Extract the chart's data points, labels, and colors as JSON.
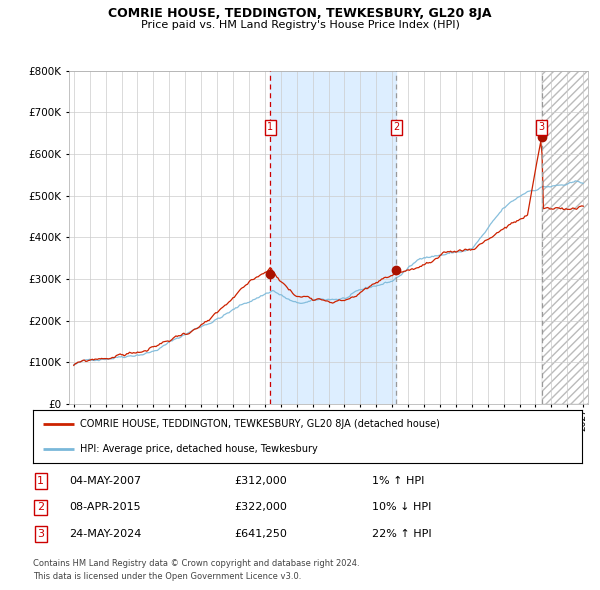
{
  "title": "COMRIE HOUSE, TEDDINGTON, TEWKESBURY, GL20 8JA",
  "subtitle": "Price paid vs. HM Land Registry's House Price Index (HPI)",
  "hpi_label": "HPI: Average price, detached house, Tewkesbury",
  "house_label": "COMRIE HOUSE, TEDDINGTON, TEWKESBURY, GL20 8JA (detached house)",
  "x_start_year": 1995,
  "x_end_year": 2027,
  "ylim": [
    0,
    800000
  ],
  "yticks": [
    0,
    100000,
    200000,
    300000,
    400000,
    500000,
    600000,
    700000,
    800000
  ],
  "sale_dates": [
    "04-MAY-2007",
    "08-APR-2015",
    "24-MAY-2024"
  ],
  "sale_prices": [
    312000,
    322000,
    641250
  ],
  "sale_prices_str": [
    "£312,000",
    "£322,000",
    "£641,250"
  ],
  "sale_hpi_pct": [
    "1% ↑ HPI",
    "10% ↓ HPI",
    "22% ↑ HPI"
  ],
  "sale_years": [
    2007.35,
    2015.27,
    2024.39
  ],
  "hpi_color": "#7ab8d9",
  "house_color": "#cc2200",
  "sale_marker_color": "#aa1100",
  "vline1_color": "#cc0000",
  "vline23_color": "#999999",
  "shade_color": "#ddeeff",
  "grid_color": "#cccccc",
  "bg_color": "#ffffff",
  "footnote1": "Contains HM Land Registry data © Crown copyright and database right 2024.",
  "footnote2": "This data is licensed under the Open Government Licence v3.0."
}
